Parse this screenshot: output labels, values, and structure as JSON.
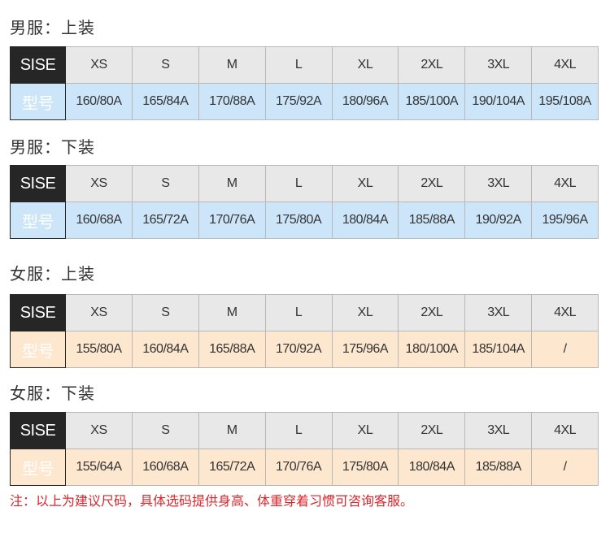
{
  "row_labels": {
    "size": "SISE",
    "model": "型号"
  },
  "sizes": [
    "XS",
    "S",
    "M",
    "L",
    "XL",
    "2XL",
    "3XL",
    "4XL"
  ],
  "sections": [
    {
      "title": "男服：上装",
      "values": [
        "160/80A",
        "165/84A",
        "170/88A",
        "175/92A",
        "180/96A",
        "185/100A",
        "190/104A",
        "195/108A"
      ],
      "color": "#cce5f9"
    },
    {
      "title": "男服：下装",
      "values": [
        "160/68A",
        "165/72A",
        "170/76A",
        "175/80A",
        "180/84A",
        "185/88A",
        "190/92A",
        "195/96A"
      ],
      "color": "#cce5f9"
    },
    {
      "title": "女服：上装",
      "values": [
        "155/80A",
        "160/84A",
        "165/88A",
        "170/92A",
        "175/96A",
        "180/100A",
        "185/104A",
        "/"
      ],
      "color": "#fde7cf"
    },
    {
      "title": "女服：下装",
      "values": [
        "155/64A",
        "160/68A",
        "165/72A",
        "170/76A",
        "175/80A",
        "180/84A",
        "185/88A",
        "/"
      ],
      "color": "#fde7cf"
    }
  ],
  "note": "注：以上为建议尺码，具体选码提供身高、体重穿着习惯可咨询客服。"
}
